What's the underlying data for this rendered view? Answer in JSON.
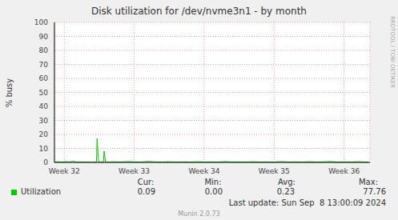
{
  "chart_data": {
    "type": "line",
    "title": "Disk utilization for /dev/nvme3n1 - by month",
    "y_label": "% busy",
    "x": [
      31.87,
      31.92,
      31.97,
      32.02,
      32.07,
      32.12,
      32.17,
      32.22,
      32.27,
      32.32,
      32.37,
      32.42,
      32.46,
      32.47,
      32.49,
      32.52,
      32.56,
      32.57,
      32.59,
      32.64,
      32.7,
      32.8,
      32.9,
      33.0,
      33.1,
      33.2,
      33.3,
      33.4,
      33.5,
      33.6,
      33.7,
      33.8,
      33.9,
      34.0,
      34.1,
      34.2,
      34.3,
      34.4,
      34.5,
      34.6,
      34.7,
      34.8,
      34.9,
      35.0,
      35.1,
      35.2,
      35.3,
      35.4,
      35.5,
      35.6,
      35.7,
      35.8,
      35.9,
      36.0,
      36.1,
      36.2,
      36.3,
      36.35
    ],
    "series": [
      {
        "name": "Utilization",
        "color": "#00cc00",
        "values": [
          0.3,
          0.5,
          0.2,
          0.6,
          0.3,
          0.8,
          0.3,
          0.4,
          0.2,
          0.3,
          0.1,
          0.2,
          0.3,
          17,
          0.5,
          0.3,
          0.4,
          8,
          0.4,
          0.2,
          0.5,
          0.3,
          0.6,
          0.4,
          0.3,
          0.7,
          0.4,
          0.3,
          0.5,
          0.3,
          0.4,
          0.3,
          0.5,
          0.3,
          0.4,
          0.3,
          0.6,
          0.3,
          0.4,
          0.3,
          0.5,
          0.3,
          0.4,
          0.3,
          0.6,
          0.3,
          0.4,
          0.3,
          0.5,
          0.3,
          0.4,
          0.6,
          0.3,
          0.4,
          0.3,
          0.5,
          0.3,
          0.2
        ]
      }
    ],
    "xlim": [
      31.86,
      36.37
    ],
    "xticks": [
      {
        "value": 32,
        "label": "Week 32"
      },
      {
        "value": 33,
        "label": "Week 33"
      },
      {
        "value": 34,
        "label": "Week 34"
      },
      {
        "value": 35,
        "label": "Week 35"
      },
      {
        "value": 36,
        "label": "Week 36"
      }
    ],
    "ylim": [
      0,
      100
    ],
    "yticks": [
      0,
      10,
      20,
      30,
      40,
      50,
      60,
      70,
      80,
      90,
      100
    ],
    "grid": true,
    "summary": [
      {
        "name": "Cur:",
        "value": 0.09
      },
      {
        "name": "Min:",
        "value": 0,
        "label": "0.00"
      },
      {
        "name": "Avg:",
        "value": 0.23
      },
      {
        "name": "Max:",
        "value": 77.76
      }
    ],
    "annotations": {
      "last_update": "Last update: Sun Sep  8 13:00:09 2024",
      "credit": "Munin 2.0.73",
      "side_text": "RRDTOOL / TOBI OETIKER"
    }
  }
}
